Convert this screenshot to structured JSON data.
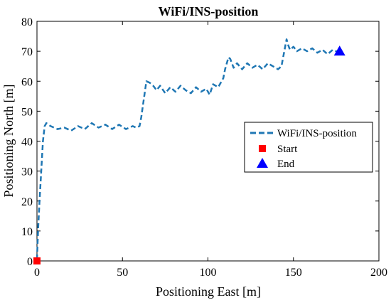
{
  "chart_data": {
    "type": "line",
    "title": "WiFi/INS-position",
    "xlabel": "Positioning East [m]",
    "ylabel": "Positioning North [m]",
    "xlim": [
      0,
      200
    ],
    "ylim": [
      0,
      80
    ],
    "xticks": [
      0,
      50,
      100,
      150,
      200
    ],
    "yticks": [
      0,
      10,
      20,
      30,
      40,
      50,
      60,
      70,
      80
    ],
    "grid": false,
    "legend_position": "center-right",
    "series": [
      {
        "name": "WiFi/INS-position",
        "style": "dashed",
        "color": "#1f77b4",
        "x": [
          0,
          0.3,
          0.8,
          1.5,
          2.5,
          3.5,
          4.5,
          5.5,
          8,
          12,
          16,
          20,
          24,
          28,
          32,
          36,
          40,
          44,
          48,
          52,
          56,
          58,
          60,
          61,
          62,
          63,
          64,
          66,
          68,
          70,
          72,
          75,
          78,
          81,
          84,
          87,
          90,
          93,
          96,
          99,
          101,
          103,
          106,
          109,
          110,
          111,
          112,
          113,
          115,
          117,
          120,
          123,
          126,
          129,
          132,
          135,
          138,
          141,
          143,
          144,
          145,
          146,
          147,
          148,
          150,
          152,
          155,
          158,
          161,
          164,
          167,
          170,
          173,
          175,
          177
        ],
        "y": [
          0.5,
          5,
          12,
          20,
          30,
          40,
          45,
          46,
          45,
          44,
          44.5,
          43.5,
          45,
          44,
          46,
          44.5,
          45.5,
          44,
          45.5,
          44,
          45,
          44.5,
          45,
          48,
          52,
          56,
          60,
          59.5,
          58.5,
          57,
          58.5,
          56,
          58,
          56.5,
          58.5,
          57,
          56,
          58,
          56.5,
          57.5,
          55.5,
          59,
          58,
          61,
          64,
          66,
          68,
          67.5,
          64.5,
          66,
          64,
          66,
          64.5,
          65.5,
          64,
          66,
          65,
          64,
          65,
          68,
          71,
          74,
          72,
          70.5,
          71.5,
          70,
          71,
          70,
          71,
          69.5,
          70.5,
          69,
          70.5,
          70,
          70
        ]
      },
      {
        "name": "Start",
        "marker": "square",
        "color": "#ff0000",
        "x": [
          0
        ],
        "y": [
          0
        ]
      },
      {
        "name": "End",
        "marker": "triangle",
        "color": "#0000ff",
        "x": [
          177
        ],
        "y": [
          70
        ]
      }
    ]
  }
}
